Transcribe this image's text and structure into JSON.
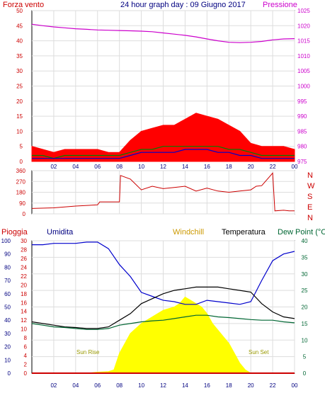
{
  "chart_data": [
    {
      "type": "line",
      "title": "24 hour graph day : 09 Giugno 2017",
      "left_axis_label": "Forza vento",
      "right_axis_label": "Pressione",
      "left_ticks": [
        "0",
        "5",
        "10",
        "15",
        "20",
        "25",
        "30",
        "35",
        "40",
        "45",
        "50"
      ],
      "right_ticks": [
        "975",
        "980",
        "985",
        "990",
        "995",
        "1000",
        "1005",
        "1010",
        "1015",
        "1020",
        "1025"
      ],
      "x_ticks": [
        "02",
        "04",
        "06",
        "08",
        "10",
        "12",
        "14",
        "16",
        "18",
        "20",
        "22",
        "00"
      ],
      "ylim_left": [
        0,
        50
      ],
      "ylim_right": [
        975,
        1025
      ],
      "series": [
        {
          "name": "Pressione",
          "axis": "right",
          "color": "#cc00cc",
          "x": [
            0,
            1,
            2,
            3,
            4,
            5,
            6,
            7,
            8,
            9,
            10,
            11,
            12,
            13,
            14,
            15,
            16,
            17,
            18,
            19,
            20,
            21,
            22,
            23,
            24
          ],
          "values": [
            1020.5,
            1020,
            1019.6,
            1019.3,
            1019,
            1018.8,
            1018.6,
            1018.5,
            1018.4,
            1018.3,
            1018.2,
            1018,
            1017.6,
            1017.2,
            1016.8,
            1016.3,
            1015.6,
            1015,
            1014.5,
            1014.4,
            1014.5,
            1014.8,
            1015.3,
            1015.6,
            1015.7
          ]
        },
        {
          "name": "",
          "axis": "left",
          "color": "#ff0000",
          "style": "filled",
          "x": [
            0,
            1,
            2,
            3,
            4,
            5,
            6,
            7,
            8,
            9,
            10,
            11,
            12,
            13,
            14,
            15,
            16,
            17,
            18,
            19,
            20,
            21,
            22,
            23,
            24
          ],
          "values": [
            5,
            4,
            3,
            4,
            4,
            4,
            4,
            3,
            3,
            7,
            10,
            11,
            12,
            12,
            14,
            16,
            15,
            14,
            12,
            10,
            6,
            5,
            5,
            5,
            4
          ]
        },
        {
          "name": "",
          "axis": "left",
          "color": "#008000",
          "x": [
            0,
            1,
            2,
            3,
            4,
            5,
            6,
            7,
            8,
            9,
            10,
            11,
            12,
            13,
            14,
            15,
            16,
            17,
            18,
            19,
            20,
            21,
            22,
            23,
            24
          ],
          "values": [
            2,
            2,
            1,
            2,
            2,
            2,
            2,
            2,
            2,
            3,
            4,
            4,
            5,
            5,
            5,
            5,
            5,
            5,
            4,
            4,
            3,
            2,
            2,
            2,
            2
          ]
        },
        {
          "name": "",
          "axis": "left",
          "color": "#0000cc",
          "x": [
            0,
            1,
            2,
            3,
            4,
            5,
            6,
            7,
            8,
            9,
            10,
            11,
            12,
            13,
            14,
            15,
            16,
            17,
            18,
            19,
            20,
            21,
            22,
            23,
            24
          ],
          "values": [
            1,
            1,
            1,
            1,
            1,
            1,
            1,
            1,
            1,
            2,
            3,
            3,
            3,
            3,
            4,
            4,
            4,
            3,
            3,
            2,
            2,
            1,
            1,
            1,
            1
          ]
        }
      ]
    },
    {
      "type": "line",
      "ticks_left": [
        "0",
        "90",
        "180",
        "270",
        "360"
      ],
      "ylim": [
        0,
        360
      ],
      "compass": [
        "N",
        "W",
        "S",
        "E",
        "N"
      ],
      "x": [
        0,
        2,
        4,
        6,
        6.2,
        8,
        8.1,
        9,
        10,
        11,
        12,
        13,
        14,
        15,
        16,
        17,
        18,
        19,
        20,
        20.5,
        21,
        22,
        22.2,
        23,
        23.5,
        24
      ],
      "values": [
        45,
        50,
        65,
        75,
        100,
        100,
        320,
        290,
        200,
        230,
        210,
        220,
        230,
        190,
        215,
        190,
        180,
        190,
        200,
        230,
        235,
        340,
        25,
        30,
        25,
        25
      ],
      "color": "#cc0000"
    },
    {
      "type": "line",
      "labels_top": {
        "rain": "Pioggia",
        "humidity": "Umidita",
        "windchill": "Windchill",
        "temperature": "Temperatura",
        "dewpoint": "Dew Point (°C"
      },
      "ticks_humidity": [
        "0",
        "10",
        "20",
        "30",
        "40",
        "50",
        "60",
        "70",
        "80",
        "90",
        "100"
      ],
      "ticks_rain": [
        "0",
        "2",
        "4",
        "6",
        "8",
        "10",
        "12",
        "14",
        "16",
        "18",
        "20",
        "22",
        "24",
        "26",
        "28",
        "30"
      ],
      "ticks_right": [
        "0",
        "5",
        "10",
        "15",
        "20",
        "25",
        "30",
        "35",
        "40"
      ],
      "x_ticks": [
        "02",
        "04",
        "06",
        "08",
        "10",
        "12",
        "14",
        "16",
        "18",
        "20",
        "22",
        "00"
      ],
      "annotations": {
        "sunrise": "Sun Rise",
        "sunset": "Sun Set"
      },
      "series": [
        {
          "name": "Umidita",
          "axis": "humidity",
          "color": "#0000cc",
          "x": [
            0,
            1,
            2,
            3,
            4,
            5,
            6,
            7,
            8,
            9,
            10,
            11,
            12,
            13,
            14,
            15,
            16,
            17,
            18,
            19,
            20,
            21,
            22,
            23,
            24
          ],
          "values": [
            97,
            97,
            98,
            98,
            98,
            99,
            99,
            94,
            82,
            73,
            61,
            58,
            55,
            54,
            52,
            52,
            55,
            54,
            53,
            52,
            54,
            70,
            85,
            90,
            92
          ]
        },
        {
          "name": "Temperatura",
          "axis": "right",
          "color": "#000000",
          "x": [
            0,
            1,
            2,
            3,
            4,
            5,
            6,
            7,
            8,
            9,
            10,
            11,
            12,
            13,
            14,
            15,
            16,
            17,
            18,
            19,
            20,
            21,
            22,
            23,
            24
          ],
          "values": [
            15.5,
            15,
            14.5,
            14,
            13.8,
            13.5,
            13.5,
            14,
            16,
            18,
            21,
            22.5,
            24,
            25,
            25.5,
            26,
            26,
            26,
            25.5,
            25,
            24.5,
            21,
            18.5,
            17,
            16.5
          ]
        },
        {
          "name": "Dew Point (°C",
          "axis": "right",
          "color": "#006633",
          "x": [
            0,
            1,
            2,
            3,
            4,
            5,
            6,
            7,
            8,
            9,
            10,
            11,
            12,
            13,
            14,
            15,
            16,
            17,
            18,
            19,
            20,
            21,
            22,
            23,
            24
          ],
          "values": [
            15,
            14.5,
            14,
            13.8,
            13.5,
            13.2,
            13.2,
            13.5,
            14.5,
            15,
            15.5,
            15.8,
            16,
            16.5,
            17,
            17.5,
            17.5,
            17,
            16.8,
            16.5,
            16.2,
            16,
            16,
            15.5,
            15.2
          ]
        },
        {
          "name": "",
          "axis": "right",
          "color": "#ffff00",
          "style": "filled",
          "x": [
            0,
            5,
            6,
            7,
            7.5,
            8,
            9,
            10,
            11,
            12,
            13,
            13.5,
            14,
            14.5,
            15,
            15.5,
            16,
            16.5,
            17,
            17.5,
            18,
            18.5,
            19,
            19.5,
            20,
            24
          ],
          "values": [
            0,
            0,
            0.3,
            0.5,
            1,
            6,
            12,
            15,
            17,
            19,
            20,
            21,
            23,
            22,
            21,
            20,
            18,
            15,
            13,
            11,
            9,
            6,
            3,
            1,
            0,
            0
          ]
        },
        {
          "name": "Pioggia",
          "axis": "rain",
          "color": "#cc0000",
          "x": [
            0,
            24
          ],
          "values": [
            0,
            0
          ]
        }
      ]
    }
  ]
}
